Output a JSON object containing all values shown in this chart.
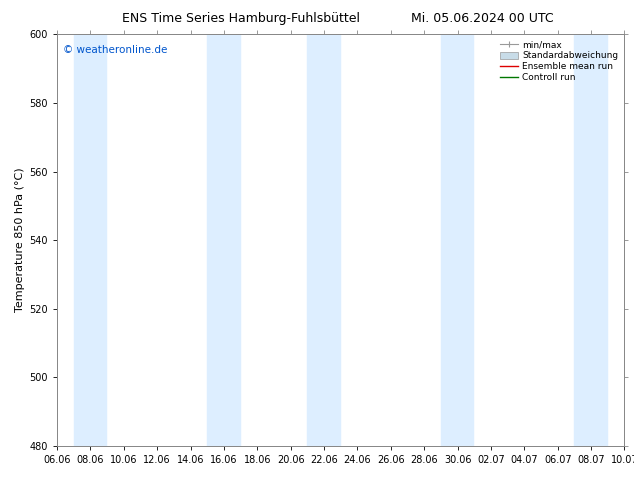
{
  "title_left": "ENS Time Series Hamburg-Fuhlsbüttel",
  "title_right": "Mi. 05.06.2024 00 UTC",
  "ylabel": "Temperature 850 hPa (°C)",
  "watermark": "© weatheronline.de",
  "watermark_color": "#0055cc",
  "ylim": [
    480,
    600
  ],
  "yticks": [
    480,
    500,
    520,
    540,
    560,
    580,
    600
  ],
  "x_labels": [
    "06.06",
    "08.06",
    "10.06",
    "12.06",
    "14.06",
    "16.06",
    "18.06",
    "20.06",
    "22.06",
    "24.06",
    "26.06",
    "28.06",
    "30.06",
    "02.07",
    "04.07",
    "06.07",
    "08.07",
    "10.07"
  ],
  "background_color": "#ffffff",
  "plot_bg_color": "#ffffff",
  "band_color": "#ddeeff",
  "band_edge_color": "#b8d0e8",
  "legend_labels": [
    "min/max",
    "Standardabweichung",
    "Ensemble mean run",
    "Controll run"
  ],
  "legend_colors": [
    "#999999",
    "#c8dce8",
    "#dd0000",
    "#007700"
  ],
  "title_fontsize": 9,
  "tick_fontsize": 7,
  "ylabel_fontsize": 8,
  "watermark_fontsize": 7.5
}
